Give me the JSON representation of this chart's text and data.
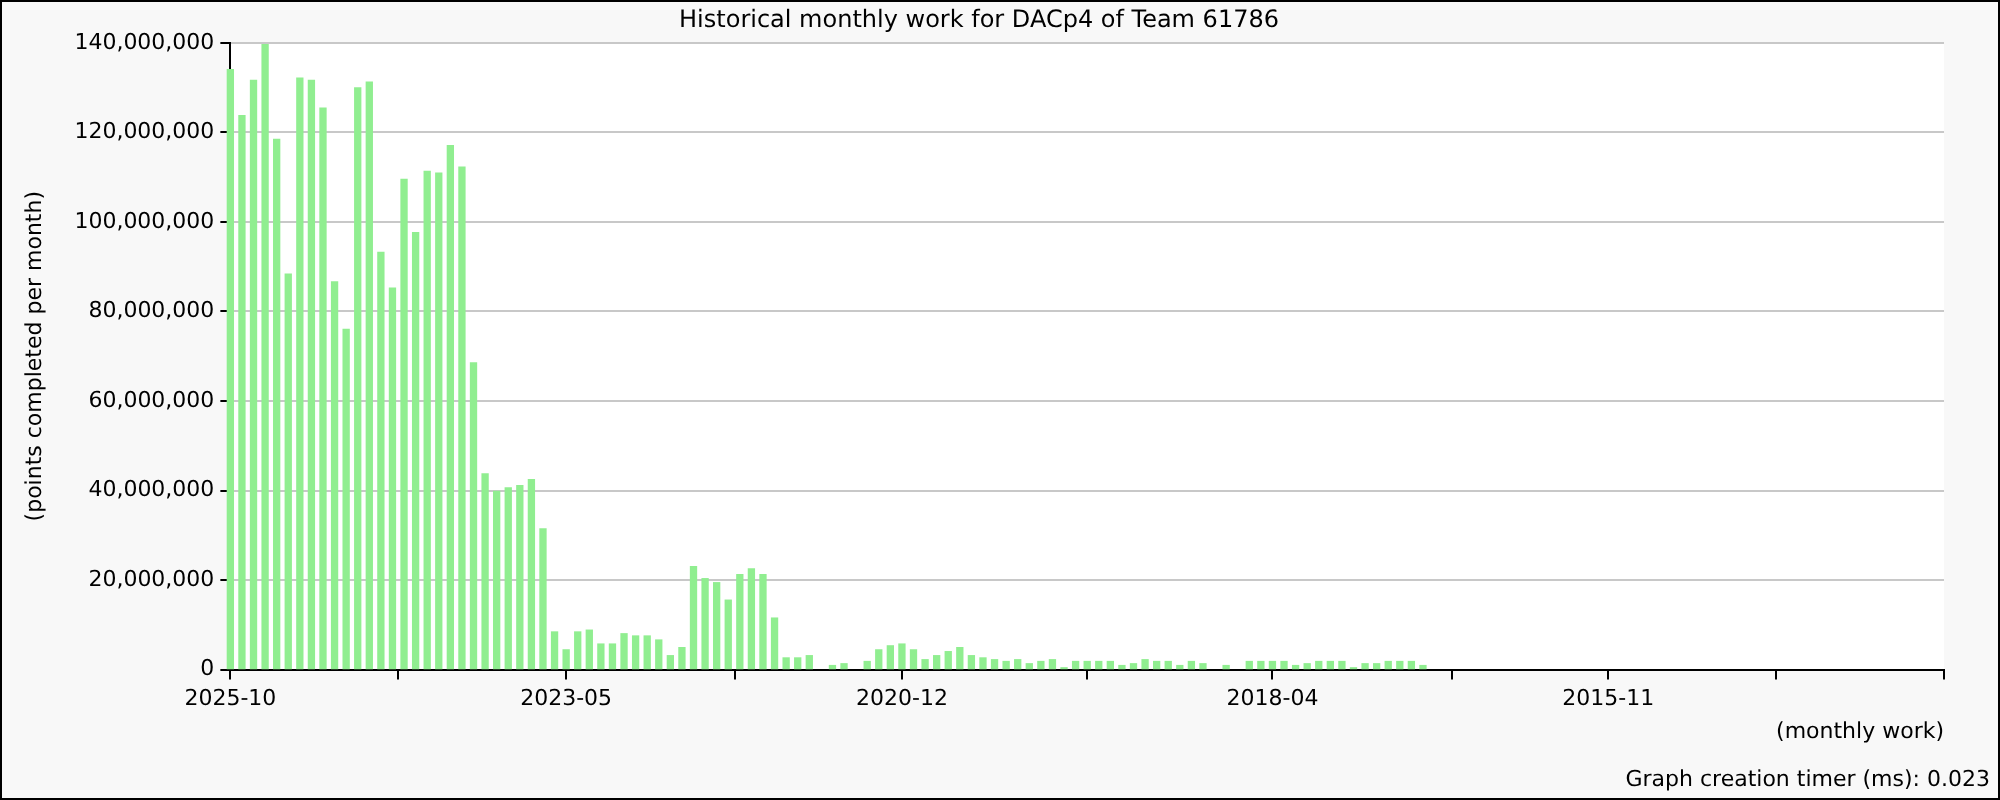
{
  "chart_data": {
    "type": "bar",
    "title": "Historical monthly work for DACp4 of Team 61786",
    "xlabel": "(monthly work)",
    "ylabel": "(points completed per month)",
    "annotations": [
      "Graph creation timer (ms): 0.023"
    ],
    "x": [
      "2025-10",
      "2025-09",
      "2025-08",
      "2025-07",
      "2025-06",
      "2025-05",
      "2025-04",
      "2025-03",
      "2025-02",
      "2025-01",
      "2024-12",
      "2024-11",
      "2024-10",
      "2024-09",
      "2024-08",
      "2024-07",
      "2024-06",
      "2024-05",
      "2024-04",
      "2024-03",
      "2024-02",
      "2024-01",
      "2023-12",
      "2023-11",
      "2023-10",
      "2023-09",
      "2023-08",
      "2023-07",
      "2023-06",
      "2023-05",
      "2023-04",
      "2023-03",
      "2023-02",
      "2023-01",
      "2022-12",
      "2022-11",
      "2022-10",
      "2022-09",
      "2022-08",
      "2022-07",
      "2022-06",
      "2022-05",
      "2022-04",
      "2022-03",
      "2022-02",
      "2022-01",
      "2021-12",
      "2021-11",
      "2021-10",
      "2021-09",
      "2021-08",
      "2021-07",
      "2021-06",
      "2021-05",
      "2021-04",
      "2021-03",
      "2021-02",
      "2021-01",
      "2020-12",
      "2020-11",
      "2020-10",
      "2020-09",
      "2020-08",
      "2020-07",
      "2020-06",
      "2020-05",
      "2020-04",
      "2020-03",
      "2020-02",
      "2020-01",
      "2019-12",
      "2019-11",
      "2019-10",
      "2019-09",
      "2019-08",
      "2019-07",
      "2019-06",
      "2019-05",
      "2019-04",
      "2019-03",
      "2019-02",
      "2019-01",
      "2018-12",
      "2018-11",
      "2018-10",
      "2018-09",
      "2018-08",
      "2018-07",
      "2018-06",
      "2018-05",
      "2018-04",
      "2018-03",
      "2018-02",
      "2018-01",
      "2017-12",
      "2017-11",
      "2017-10",
      "2017-09",
      "2017-08",
      "2017-07",
      "2017-06",
      "2017-05",
      "2017-04",
      "2017-03"
    ],
    "values": [
      134000000,
      123700000,
      131600000,
      139600000,
      118400000,
      88300000,
      132100000,
      131600000,
      125400000,
      86600000,
      76000000,
      129900000,
      131200000,
      93200000,
      85200000,
      109500000,
      97600000,
      111300000,
      110900000,
      117000000,
      112200000,
      68500000,
      43700000,
      39800000,
      40600000,
      41100000,
      42400000,
      31400000,
      8400000,
      4400000,
      8400000,
      8800000,
      5700000,
      5700000,
      8000000,
      7500000,
      7500000,
      6600000,
      3100000,
      4900000,
      23000000,
      20300000,
      19400000,
      15500000,
      21200000,
      22500000,
      21200000,
      11500000,
      2600000,
      2600000,
      3100000,
      null,
      900000,
      1300000,
      null,
      1800000,
      4400000,
      5300000,
      5700000,
      4400000,
      2200000,
      3100000,
      4000000,
      4900000,
      3100000,
      2600000,
      2200000,
      1800000,
      2200000,
      1300000,
      1800000,
      2200000,
      400000,
      1800000,
      1800000,
      1800000,
      1800000,
      900000,
      1300000,
      2200000,
      1800000,
      1800000,
      900000,
      1800000,
      1300000,
      null,
      900000,
      null,
      1800000,
      1800000,
      1800000,
      1800000,
      900000,
      1300000,
      1800000,
      1800000,
      1800000,
      400000,
      1300000,
      1300000,
      1800000,
      1800000,
      1800000,
      900000
    ],
    "color": "#90ee90",
    "xlim": [
      "2025-10",
      "2013-06"
    ],
    "xticks": [
      "2025-10",
      {
        "value": "2024-07-16",
        "label": null
      },
      "2023-05",
      {
        "value": "2022-02-15",
        "label": null
      },
      "2020-12",
      {
        "value": "2019-08",
        "label": null
      },
      "2018-04",
      {
        "value": "2016-12-16",
        "label": null
      },
      "2015-11",
      {
        "value": "2014-08-16",
        "label": null
      },
      {
        "value": "2013-06",
        "label": null
      }
    ],
    "ylim": [
      0,
      140000000
    ],
    "yticks": [
      {
        "value": 0,
        "label": "0"
      },
      {
        "value": 20000000,
        "label": "20,000,000"
      },
      {
        "value": 40000000,
        "label": "40,000,000"
      },
      {
        "value": 60000000,
        "label": "60,000,000"
      },
      {
        "value": 80000000,
        "label": "80,000,000"
      },
      {
        "value": 100000000,
        "label": "100,000,000"
      },
      {
        "value": 120000000,
        "label": "120,000,000"
      },
      {
        "value": 140000000,
        "label": "140,000,000"
      }
    ],
    "grid": "y"
  }
}
